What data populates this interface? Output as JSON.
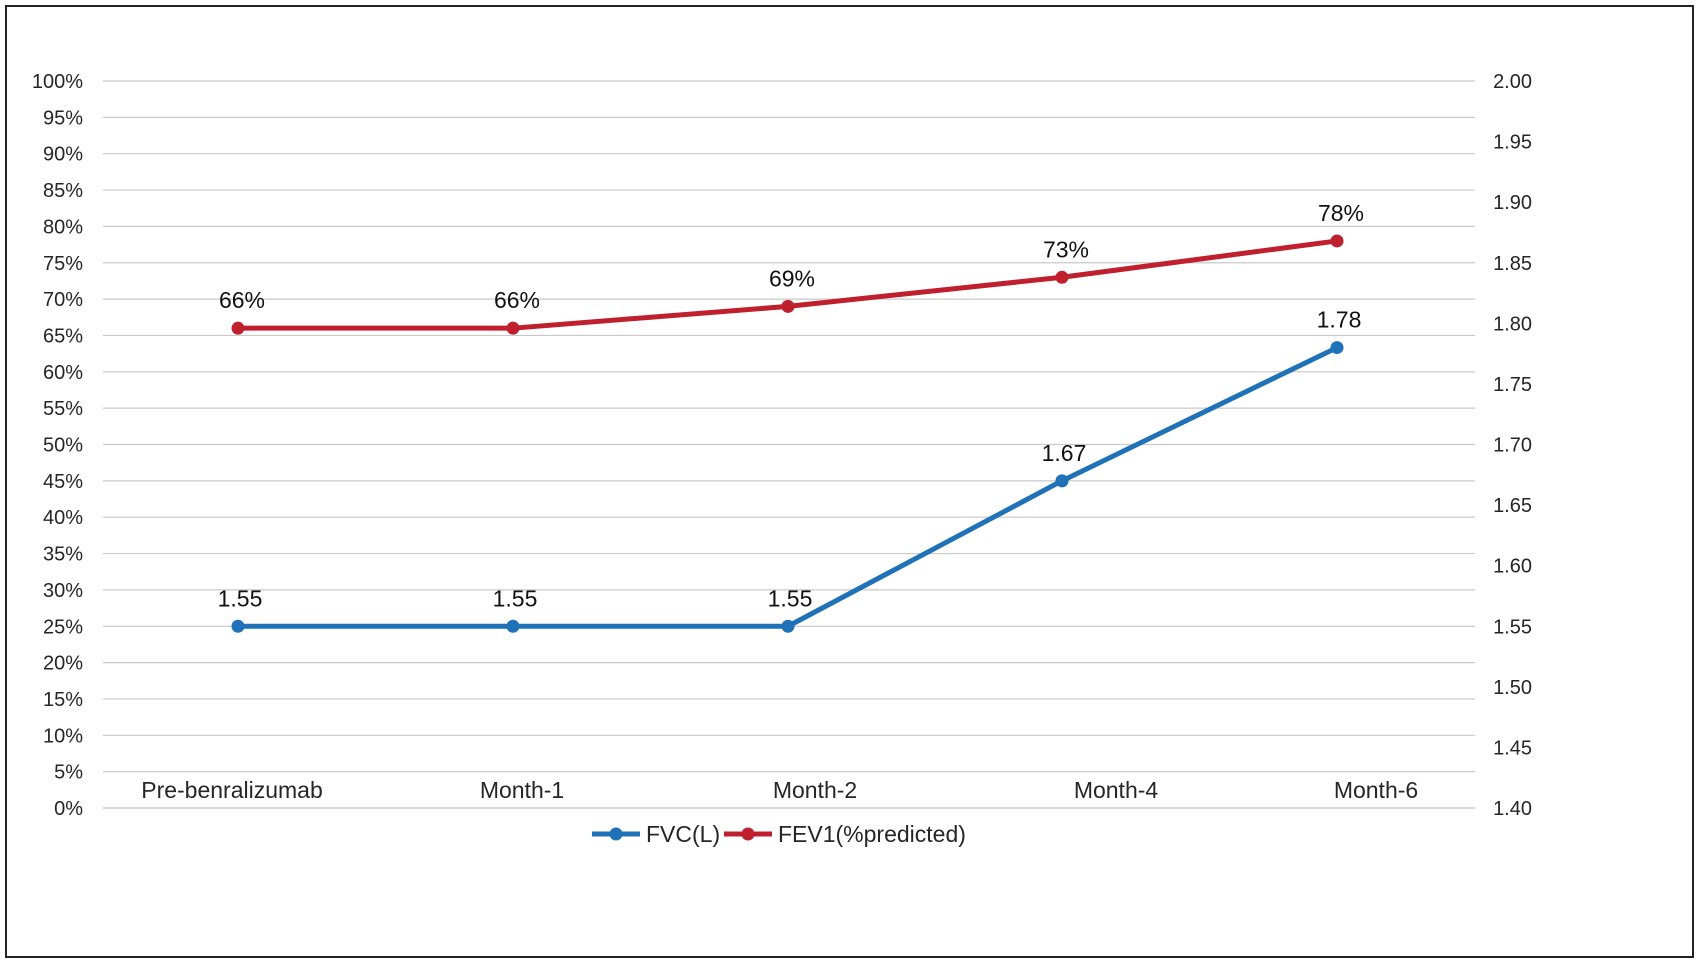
{
  "chart_data": {
    "type": "line",
    "categories": [
      "Pre-benralizumab",
      "Month-1",
      "Month-2",
      "Month-4",
      "Month-6"
    ],
    "series": [
      {
        "name": "FVC(L)",
        "axis": "right",
        "color": "#1f72b8",
        "values": [
          1.55,
          1.55,
          1.55,
          1.67,
          1.78
        ],
        "labels": [
          "1.55",
          "1.55",
          "1.55",
          "1.67",
          "1.78"
        ]
      },
      {
        "name": "FEV1(%predicted)",
        "axis": "left",
        "color": "#c0202d",
        "values": [
          66,
          66,
          69,
          73,
          78
        ],
        "labels": [
          "66%",
          "66%",
          "69%",
          "73%",
          "78%"
        ]
      }
    ],
    "y_left": {
      "min": 0,
      "max": 100,
      "step": 5,
      "ticks": [
        "0%",
        "5%",
        "10%",
        "15%",
        "20%",
        "25%",
        "30%",
        "35%",
        "40%",
        "45%",
        "50%",
        "55%",
        "60%",
        "65%",
        "70%",
        "75%",
        "80%",
        "85%",
        "90%",
        "95%",
        "100%"
      ]
    },
    "y_right": {
      "min": 1.4,
      "max": 2.0,
      "step": 0.05,
      "ticks": [
        "1.40",
        "1.45",
        "1.50",
        "1.55",
        "1.60",
        "1.65",
        "1.70",
        "1.75",
        "1.80",
        "1.85",
        "1.90",
        "1.95",
        "2.00"
      ]
    },
    "grid": true,
    "legend": "bottom-center"
  }
}
